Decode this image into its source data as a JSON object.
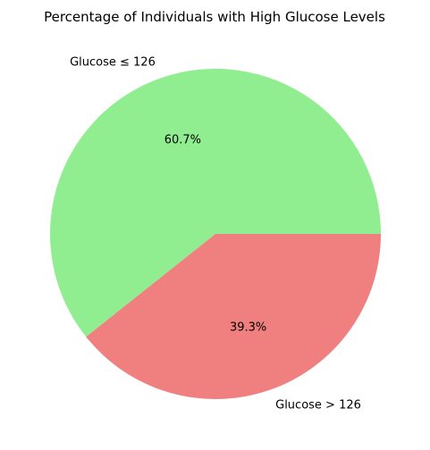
{
  "chart_data": {
    "type": "pie",
    "title": "Percentage of Individuals with High Glucose Levels",
    "labels": [
      "Glucose ≤ 126",
      "Glucose > 126"
    ],
    "values": [
      60.7,
      39.3
    ],
    "percent_labels": [
      "60.7%",
      "39.3%"
    ],
    "colors": [
      "#90EE90",
      "#F08080"
    ],
    "start_angle_deg": 0,
    "direction": "counterclockwise"
  }
}
